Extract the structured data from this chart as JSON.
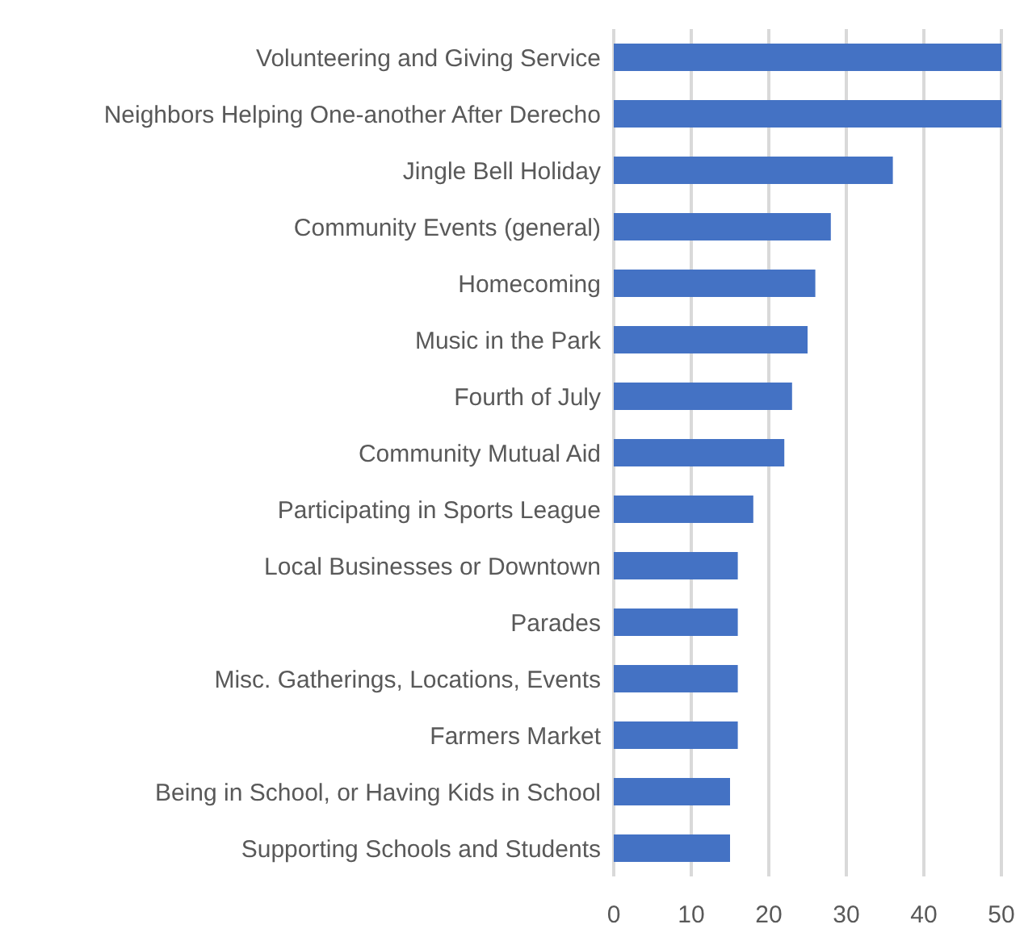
{
  "chart_data": {
    "type": "bar",
    "orientation": "horizontal",
    "categories": [
      "Volunteering and Giving Service",
      "Neighbors Helping One-another After Derecho",
      "Jingle Bell Holiday",
      "Community Events (general)",
      "Homecoming",
      "Music in the Park",
      "Fourth of July",
      "Community Mutual Aid",
      "Participating in Sports League",
      "Local Businesses or Downtown",
      "Parades",
      "Misc. Gatherings, Locations, Events",
      "Farmers Market",
      "Being in School, or Having Kids in School",
      "Supporting Schools and Students"
    ],
    "values": [
      50,
      50,
      36,
      28,
      26,
      25,
      23,
      22,
      18,
      16,
      16,
      16,
      16,
      15,
      15
    ],
    "color": "#4472c4",
    "xlim": [
      0,
      50
    ],
    "xticks": [
      0,
      10,
      20,
      30,
      40,
      50
    ],
    "grid": "x"
  }
}
